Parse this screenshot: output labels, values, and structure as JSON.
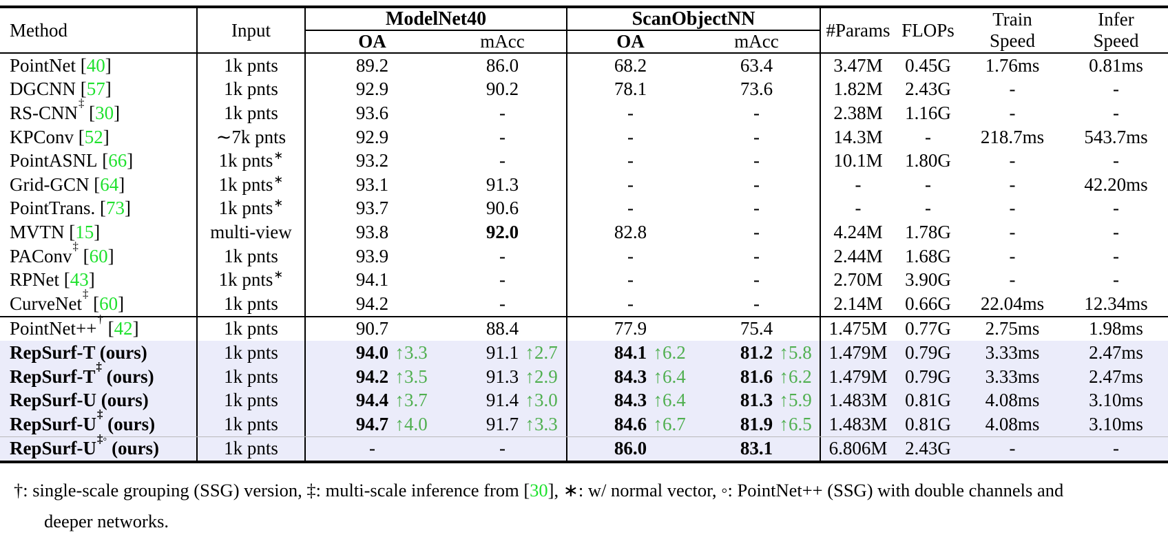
{
  "colors": {
    "citation_green": "#1ee12d",
    "delta_green": "#50af50",
    "highlight_bg": "#ebecfa"
  },
  "table": {
    "header": {
      "method": "Method",
      "input": "Input",
      "groups": [
        {
          "label": "ModelNet40",
          "sub": [
            {
              "t": "OA"
            },
            {
              "t": "mAcc"
            }
          ]
        },
        {
          "label": "ScanObjectNN",
          "sub": [
            {
              "t": "OA"
            },
            {
              "t": "mAcc"
            }
          ]
        }
      ],
      "params": "#Params",
      "flops": "FLOPs",
      "train_speed": [
        "Train",
        "Speed"
      ],
      "infer_speed": [
        "Infer",
        "Speed"
      ]
    },
    "rows": [
      {
        "name": "PointNet",
        "ref": "40",
        "input": "1k pnts",
        "m": [
          {
            "v": "89.2"
          },
          {
            "v": "86.0"
          },
          {
            "v": "68.2"
          },
          {
            "v": "63.4"
          }
        ],
        "s": [
          "3.47M",
          "0.45G",
          "1.76ms",
          "0.81ms"
        ]
      },
      {
        "name": "DGCNN",
        "ref": "57",
        "input": "1k pnts",
        "m": [
          {
            "v": "92.9"
          },
          {
            "v": "90.2"
          },
          {
            "v": "78.1"
          },
          {
            "v": "73.6"
          }
        ],
        "s": [
          "1.82M",
          "2.43G",
          "-",
          "-"
        ]
      },
      {
        "name": "RS-CNN",
        "sup": "‡",
        "ref": "30",
        "input": "1k pnts",
        "m": [
          {
            "v": "93.6"
          },
          {
            "v": "-"
          },
          {
            "v": "-"
          },
          {
            "v": "-"
          }
        ],
        "s": [
          "2.38M",
          "1.16G",
          "-",
          "-"
        ]
      },
      {
        "name": "KPConv",
        "ref": "52",
        "input": "∼7k pnts",
        "m": [
          {
            "v": "92.9"
          },
          {
            "v": "-"
          },
          {
            "v": "-"
          },
          {
            "v": "-"
          }
        ],
        "s": [
          "14.3M",
          "-",
          "218.7ms",
          "543.7ms"
        ]
      },
      {
        "name": "PointASNL",
        "ref": "66",
        "input": "1k pnts",
        "isup": "∗",
        "m": [
          {
            "v": "93.2"
          },
          {
            "v": "-"
          },
          {
            "v": "-"
          },
          {
            "v": "-"
          }
        ],
        "s": [
          "10.1M",
          "1.80G",
          "-",
          "-"
        ]
      },
      {
        "name": "Grid-GCN",
        "ref": "64",
        "input": "1k pnts",
        "isup": "∗",
        "m": [
          {
            "v": "93.1"
          },
          {
            "v": "91.3"
          },
          {
            "v": "-"
          },
          {
            "v": "-"
          }
        ],
        "s": [
          "-",
          "-",
          "-",
          "42.20ms"
        ]
      },
      {
        "name": "PointTrans.",
        "ref": "73",
        "input": "1k pnts",
        "isup": "∗",
        "m": [
          {
            "v": "93.7"
          },
          {
            "v": "90.6"
          },
          {
            "v": "-"
          },
          {
            "v": "-"
          }
        ],
        "s": [
          "-",
          "-",
          "-",
          "-"
        ]
      },
      {
        "name": "MVTN",
        "ref": "15",
        "input": "multi-view",
        "m": [
          {
            "v": "93.8"
          },
          {
            "v": "92.0",
            "b": true
          },
          {
            "v": "82.8"
          },
          {
            "v": "-"
          }
        ],
        "s": [
          "4.24M",
          "1.78G",
          "-",
          "-"
        ]
      },
      {
        "name": "PAConv",
        "sup": "‡",
        "ref": "60",
        "input": "1k pnts",
        "m": [
          {
            "v": "93.9"
          },
          {
            "v": "-"
          },
          {
            "v": "-"
          },
          {
            "v": "-"
          }
        ],
        "s": [
          "2.44M",
          "1.68G",
          "-",
          "-"
        ]
      },
      {
        "name": "RPNet",
        "ref": "43",
        "input": "1k pnts",
        "isup": "∗",
        "m": [
          {
            "v": "94.1"
          },
          {
            "v": "-"
          },
          {
            "v": "-"
          },
          {
            "v": "-"
          }
        ],
        "s": [
          "2.70M",
          "3.90G",
          "-",
          "-"
        ]
      },
      {
        "name": "CurveNet",
        "sup": "‡",
        "ref": "60",
        "input": "1k pnts",
        "m": [
          {
            "v": "94.2"
          },
          {
            "v": "-"
          },
          {
            "v": "-"
          },
          {
            "v": "-"
          }
        ],
        "s": [
          "2.14M",
          "0.66G",
          "22.04ms",
          "12.34ms"
        ]
      },
      {
        "name": "PointNet++",
        "sup": "†",
        "ref": "42",
        "input": "1k pnts",
        "rule": true,
        "m": [
          {
            "v": "90.7"
          },
          {
            "v": "88.4"
          },
          {
            "v": "77.9"
          },
          {
            "v": "75.4"
          }
        ],
        "s": [
          "1.475M",
          "0.77G",
          "2.75ms",
          "1.98ms"
        ]
      },
      {
        "name": "RepSurf-T",
        "ours": true,
        "hl": true,
        "input": "1k pnts",
        "m": [
          {
            "v": "94.0",
            "b": true,
            "d": "3.3"
          },
          {
            "v": "91.1",
            "d": "2.7"
          },
          {
            "v": "84.1",
            "b": true,
            "d": "6.2"
          },
          {
            "v": "81.2",
            "b": true,
            "d": "5.8"
          }
        ],
        "s": [
          "1.479M",
          "0.79G",
          "3.33ms",
          "2.47ms"
        ]
      },
      {
        "name": "RepSurf-T",
        "sup": "‡",
        "ours": true,
        "hl": true,
        "input": "1k pnts",
        "m": [
          {
            "v": "94.2",
            "b": true,
            "d": "3.5"
          },
          {
            "v": "91.3",
            "d": "2.9"
          },
          {
            "v": "84.3",
            "b": true,
            "d": "6.4"
          },
          {
            "v": "81.6",
            "b": true,
            "d": "6.2"
          }
        ],
        "s": [
          "1.479M",
          "0.79G",
          "3.33ms",
          "2.47ms"
        ]
      },
      {
        "name": "RepSurf-U",
        "ours": true,
        "hl": true,
        "input": "1k pnts",
        "m": [
          {
            "v": "94.4",
            "b": true,
            "d": "3.7"
          },
          {
            "v": "91.4",
            "d": "3.0"
          },
          {
            "v": "84.3",
            "b": true,
            "d": "6.4"
          },
          {
            "v": "81.3",
            "b": true,
            "d": "5.9"
          }
        ],
        "s": [
          "1.483M",
          "0.81G",
          "4.08ms",
          "3.10ms"
        ]
      },
      {
        "name": "RepSurf-U",
        "sup": "‡",
        "ours": true,
        "hl": true,
        "input": "1k pnts",
        "m": [
          {
            "v": "94.7",
            "b": true,
            "d": "4.0"
          },
          {
            "v": "91.7",
            "d": "3.3"
          },
          {
            "v": "84.6",
            "b": true,
            "d": "6.7"
          },
          {
            "v": "81.9",
            "b": true,
            "d": "6.5"
          }
        ],
        "s": [
          "1.483M",
          "0.81G",
          "4.08ms",
          "3.10ms"
        ]
      },
      {
        "name": "RepSurf-U",
        "sup": "‡◦",
        "ours": true,
        "hl": true,
        "thinrule": true,
        "input": "1k pnts",
        "m": [
          {
            "v": "-"
          },
          {
            "v": "-"
          },
          {
            "v": "86.0",
            "b": true
          },
          {
            "v": "83.1",
            "b": true
          }
        ],
        "s": [
          "6.806M",
          "2.43G",
          "-",
          "-"
        ]
      }
    ]
  },
  "footnote": {
    "line1_pre": "†: single-scale grouping (SSG) version, ‡: multi-scale inference from [",
    "line1_ref": "30",
    "line1_post": "], ∗: w/ normal vector, ◦: PointNet++ (SSG) with double channels and",
    "line2": "deeper networks."
  }
}
